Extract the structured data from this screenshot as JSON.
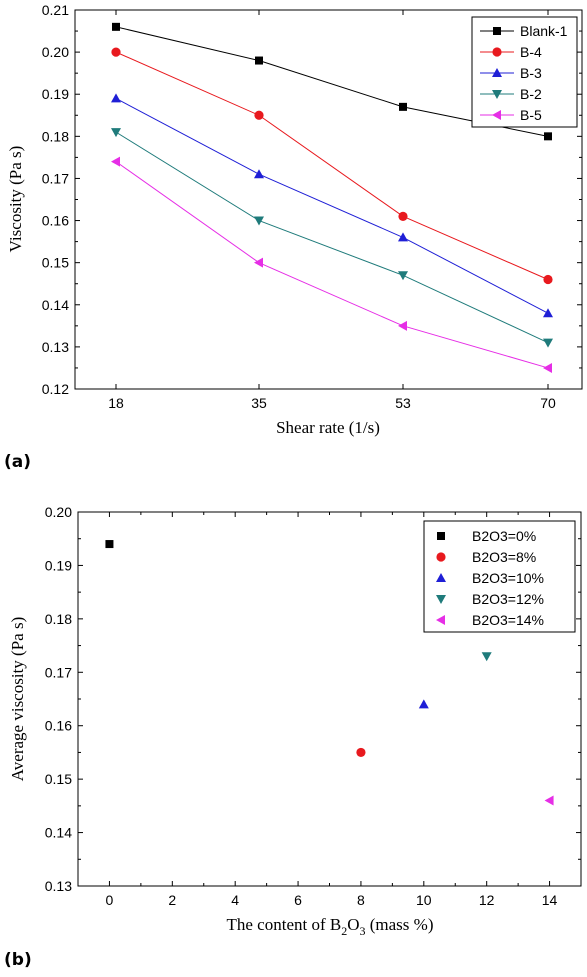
{
  "panels": {
    "a_label": "(a)",
    "b_label": "(b)"
  },
  "chart_data": [
    {
      "type": "line",
      "xlabel": "Shear rate (1/s)",
      "ylabel": "Viscosity (Pa s)",
      "categories": [
        "18",
        "35",
        "53",
        "70"
      ],
      "ylim": [
        0.12,
        0.21
      ],
      "yticks": [
        "0.12",
        "0.13",
        "0.14",
        "0.15",
        "0.16",
        "0.17",
        "0.18",
        "0.19",
        "0.20",
        "0.21"
      ],
      "grid": false,
      "legend_position": "top-right",
      "series": [
        {
          "name": "Blank-1",
          "values": [
            0.206,
            0.198,
            0.187,
            0.18
          ],
          "color": "#000000",
          "marker": "square"
        },
        {
          "name": "B-4",
          "values": [
            0.2,
            0.185,
            0.161,
            0.146
          ],
          "color": "#e8191e",
          "marker": "circle"
        },
        {
          "name": "B-3",
          "values": [
            0.189,
            0.171,
            0.156,
            0.138
          ],
          "color": "#1f1fd6",
          "marker": "triangle-up"
        },
        {
          "name": "B-2",
          "values": [
            0.181,
            0.16,
            0.147,
            0.131
          ],
          "color": "#1f7b7b",
          "marker": "triangle-down"
        },
        {
          "name": "B-5",
          "values": [
            0.174,
            0.15,
            0.135,
            0.125
          ],
          "color": "#e62ee6",
          "marker": "triangle-left"
        }
      ]
    },
    {
      "type": "scatter",
      "xlabel_prefix": "The content of B",
      "xlabel_sub1": "2",
      "xlabel_mid": "O",
      "xlabel_sub2": "3",
      "xlabel_suffix": " (mass %)",
      "ylabel": "Average viscosity (Pa s)",
      "xlim": [
        -1,
        15
      ],
      "xticks": [
        "0",
        "2",
        "4",
        "6",
        "8",
        "10",
        "12",
        "14"
      ],
      "ylim": [
        0.13,
        0.2
      ],
      "yticks": [
        "0.13",
        "0.14",
        "0.15",
        "0.16",
        "0.17",
        "0.18",
        "0.19",
        "0.20"
      ],
      "grid": false,
      "legend_position": "top-right",
      "series": [
        {
          "name": "B2O3=0%",
          "x": 0,
          "y": 0.194,
          "color": "#000000",
          "marker": "square"
        },
        {
          "name": "B2O3=8%",
          "x": 8,
          "y": 0.155,
          "color": "#e8191e",
          "marker": "circle"
        },
        {
          "name": "B2O3=10%",
          "x": 10,
          "y": 0.164,
          "color": "#1f1fd6",
          "marker": "triangle-up"
        },
        {
          "name": "B2O3=12%",
          "x": 12,
          "y": 0.173,
          "color": "#1f7b7b",
          "marker": "triangle-down"
        },
        {
          "name": "B2O3=14%",
          "x": 14,
          "y": 0.146,
          "color": "#e62ee6",
          "marker": "triangle-left"
        }
      ]
    }
  ]
}
